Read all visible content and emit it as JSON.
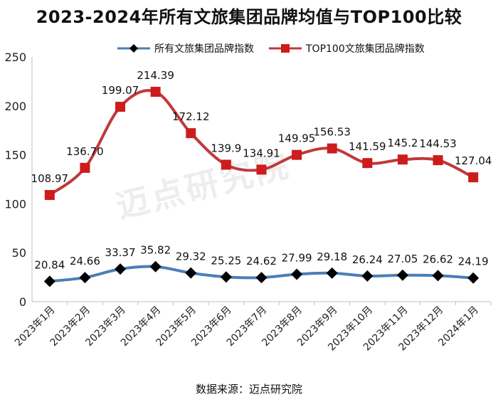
{
  "title": "2023-2024年所有文旅集团品牌均值与TOP100比较",
  "source": "数据来源：迈点研究院",
  "watermark": "迈点研究院",
  "chart_data": {
    "type": "line",
    "categories": [
      "2023年1月",
      "2023年2月",
      "2023年3月",
      "2023年4月",
      "2023年5月",
      "2023年6月",
      "2023年7月",
      "2023年8月",
      "2023年9月",
      "2023年10月",
      "2023年11月",
      "2023年12月",
      "2024年1月"
    ],
    "series": [
      {
        "name": "所有文旅集团品牌指数",
        "color": "#4a7fb5",
        "marker": "diamond",
        "marker_color": "#000000",
        "values": [
          20.84,
          24.66,
          33.37,
          35.82,
          29.32,
          25.25,
          24.62,
          27.99,
          29.18,
          26.24,
          27.05,
          26.62,
          24.19
        ],
        "labels": [
          "20.84",
          "24.66",
          "33.37",
          "35.82",
          "29.32",
          "25.25",
          "24.62",
          "27.99",
          "29.18",
          "26.24",
          "27.05",
          "26.62",
          "24.19"
        ]
      },
      {
        "name": "TOP100文旅集团品牌指数",
        "color": "#c0393b",
        "marker": "square",
        "marker_color": "#cc1c1c",
        "values": [
          108.97,
          136.7,
          199.07,
          214.39,
          172.12,
          139.9,
          134.91,
          149.95,
          156.53,
          141.59,
          145.2,
          144.53,
          127.04
        ],
        "labels": [
          "108.97",
          "136.70",
          "199.07",
          "214.39",
          "172.12",
          "139.9",
          "134.91",
          "149.95",
          "156.53",
          "141.59",
          "145.2",
          "144.53",
          "127.04"
        ]
      }
    ],
    "ylim": [
      0,
      250
    ],
    "yticks": [
      0,
      50,
      100,
      150,
      200,
      250
    ],
    "ytick_labels": [
      "0",
      "50",
      "100",
      "150",
      "200",
      "250"
    ],
    "grid": false,
    "legend_position": "top"
  }
}
